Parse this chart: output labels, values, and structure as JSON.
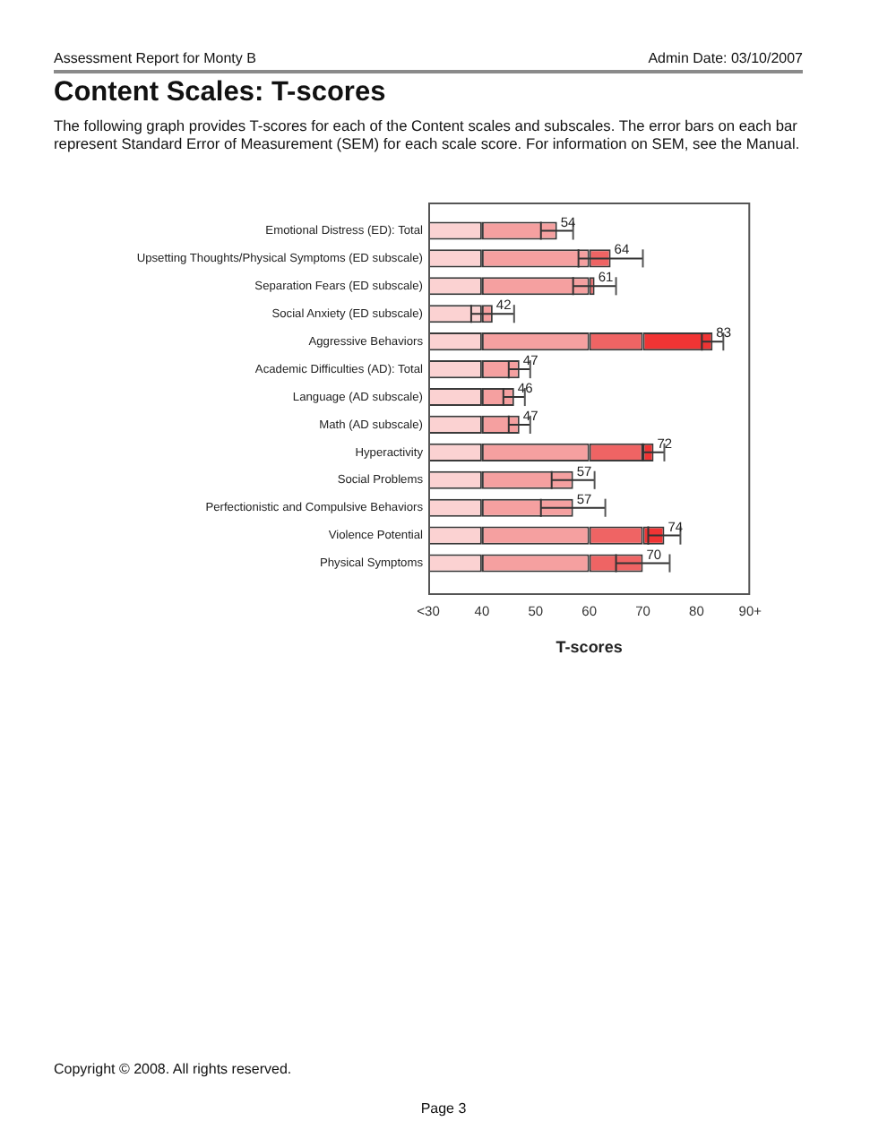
{
  "chart_data": {
    "type": "bar",
    "orientation": "horizontal",
    "title": "Content Scales: T-scores",
    "subtitle": "The following graph provides T-scores for each of the Content scales and subscales. The error bars on each bar represent Standard Error of Measurement (SEM) for each scale score. For information on SEM, see the Manual.",
    "xlabel": "T-scores",
    "annotations": [
      "Assessment Report for Monty B",
      "Admin Date: 03/10/2007",
      "Copyright © 2008. All rights reserved.",
      "Page 3",
      {
        "text": "54",
        "x": 54,
        "y": "Emotional Distress (ED): Total"
      },
      {
        "text": "64",
        "x": 64,
        "y": "Upsetting Thoughts/Physical Symptoms (ED subscale)"
      },
      {
        "text": "61",
        "x": 61,
        "y": "Separation Fears (ED subscale)"
      },
      {
        "text": "42",
        "x": 42,
        "y": "Social Anxiety (ED subscale)"
      },
      {
        "text": "83",
        "x": 83,
        "y": "Aggressive Behaviors"
      },
      {
        "text": "47",
        "x": 47,
        "y": "Academic Difficulties (AD): Total"
      },
      {
        "text": "46",
        "x": 46,
        "y": "Language (AD subscale)"
      },
      {
        "text": "47",
        "x": 47,
        "y": "Math (AD subscale)"
      },
      {
        "text": "72",
        "x": 72,
        "y": "Hyperactivity"
      },
      {
        "text": "57",
        "x": 57,
        "y": "Social Problems"
      },
      {
        "text": "57",
        "x": 57,
        "y": "Perfectionistic and Compulsive Behaviors"
      },
      {
        "text": "74",
        "x": 74,
        "y": "Violence Potential"
      },
      {
        "text": "70",
        "x": 70,
        "y": "Physical Symptoms"
      }
    ],
    "categories": [
      "Emotional Distress (ED): Total",
      "Upsetting Thoughts/Physical Symptoms (ED subscale)",
      "Separation Fears (ED subscale)",
      "Social Anxiety (ED subscale)",
      "Aggressive Behaviors",
      "Academic Difficulties (AD): Total",
      "Language (AD subscale)",
      "Math (AD subscale)",
      "Hyperactivity",
      "Social Problems",
      "Perfectionistic and Compulsive Behaviors",
      "Violence Potential",
      "Physical Symptoms"
    ],
    "series": [
      {
        "color": "#fbd2d2",
        "base": [
          30,
          30,
          30,
          30,
          30,
          30,
          30,
          30,
          30,
          30,
          30,
          30,
          30
        ],
        "values": [
          10,
          10,
          10,
          10,
          10,
          10,
          10,
          10,
          10,
          10,
          10,
          10,
          10
        ]
      },
      {
        "color": "#f5a0a0",
        "base": [
          40,
          40,
          40,
          40,
          40,
          40,
          40,
          40,
          40,
          40,
          40,
          40,
          40
        ],
        "values": [
          14,
          20,
          20,
          2,
          20,
          7,
          6,
          7,
          20,
          17,
          17,
          20,
          20
        ],
        "errors": [
          3,
          null,
          null,
          4,
          null,
          2,
          2,
          2,
          null,
          4,
          6,
          null,
          null
        ]
      },
      {
        "color": "#ef6464",
        "base": [
          null,
          60,
          60,
          null,
          60,
          null,
          null,
          null,
          60,
          null,
          null,
          60,
          60
        ],
        "values": [
          null,
          4,
          1,
          null,
          10,
          null,
          null,
          null,
          10,
          null,
          null,
          10,
          10
        ],
        "errors": [
          null,
          6,
          4,
          null,
          null,
          null,
          null,
          null,
          null,
          null,
          null,
          null,
          5
        ]
      },
      {
        "color": "#f03434",
        "base": [
          null,
          null,
          null,
          null,
          70,
          null,
          null,
          null,
          70,
          null,
          null,
          70,
          null
        ],
        "values": [
          null,
          null,
          null,
          null,
          13,
          null,
          null,
          null,
          2,
          null,
          null,
          4,
          null
        ],
        "errors": [
          null,
          null,
          null,
          null,
          2,
          null,
          null,
          null,
          2,
          null,
          null,
          3,
          null
        ]
      }
    ],
    "xlim": [
      30,
      90
    ],
    "xticks": [
      {
        "value": 30,
        "label": "<30"
      },
      40,
      50,
      60,
      70,
      80,
      {
        "value": 90,
        "label": "90+"
      }
    ]
  }
}
